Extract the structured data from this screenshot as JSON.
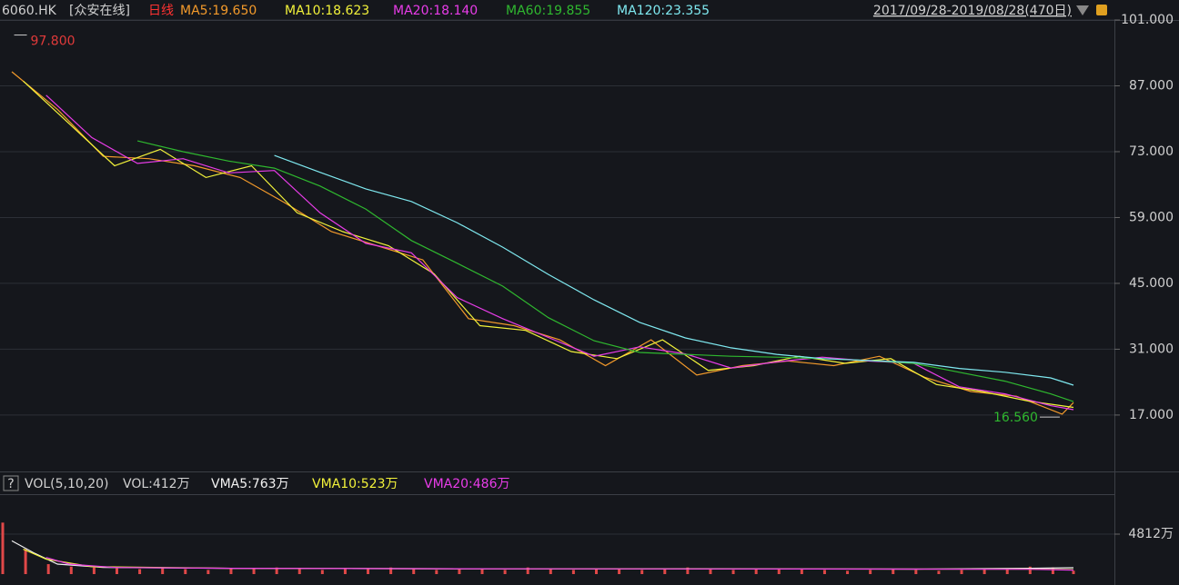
{
  "header": {
    "symbol": "6060.HK",
    "name": "[众安在线]",
    "period": "日线",
    "range": "2017/09/28-2019/08/28(470日)"
  },
  "volume_header": {
    "help": "?",
    "indicator": "VOL(5,10,20)",
    "current": "VOL:412万"
  },
  "chart_data": [
    {
      "type": "line",
      "xlim": [
        0,
        469
      ],
      "ylim": [
        5.2,
        101
      ],
      "grid": true,
      "yticks": [
        {
          "value": 101,
          "label": "101.000"
        },
        {
          "value": 87,
          "label": "87.000"
        },
        {
          "value": 73,
          "label": "73.000"
        },
        {
          "value": 59,
          "label": "59.000"
        },
        {
          "value": 45,
          "label": "45.000"
        },
        {
          "value": 31,
          "label": "31.000"
        },
        {
          "value": 17,
          "label": "17.000"
        }
      ],
      "series": [
        {
          "name": "MA5:19.650",
          "color": "#f39a2b",
          "x": [
            4,
            24,
            44,
            64,
            84,
            104,
            124,
            144,
            164,
            184,
            204,
            224,
            244,
            264,
            284,
            304,
            324,
            344,
            364,
            384,
            404,
            424,
            444,
            464,
            469
          ],
          "values": [
            90,
            82,
            72,
            71.5,
            70,
            67.5,
            62,
            56,
            53,
            50,
            37.5,
            36,
            33,
            27.5,
            33,
            25.5,
            27.5,
            28.5,
            27.5,
            29.5,
            25,
            22,
            21,
            17.2,
            19.65
          ]
        },
        {
          "name": "MA10:18.623",
          "color": "#f2f23a",
          "x": [
            9,
            29,
            49,
            69,
            89,
            109,
            129,
            149,
            169,
            189,
            209,
            229,
            249,
            269,
            289,
            309,
            329,
            349,
            369,
            389,
            409,
            429,
            449,
            469
          ],
          "values": [
            88,
            79,
            70,
            73.5,
            67.5,
            70,
            60,
            56,
            53,
            47,
            36,
            35,
            30.5,
            29,
            33,
            26.5,
            27.5,
            29.5,
            28,
            29,
            23.5,
            22,
            20,
            18.623
          ]
        },
        {
          "name": "MA20:18.140",
          "color": "#e83ce8",
          "x": [
            19,
            39,
            59,
            79,
            99,
            119,
            139,
            159,
            179,
            199,
            219,
            239,
            259,
            279,
            299,
            319,
            339,
            359,
            379,
            399,
            419,
            439,
            459,
            469
          ],
          "values": [
            85,
            76,
            70.5,
            71.5,
            68.5,
            69,
            60,
            53.5,
            51.5,
            42,
            37.5,
            33.5,
            29.5,
            31.5,
            30,
            27,
            28.3,
            29.3,
            28.5,
            28,
            23,
            21.5,
            19,
            18.14
          ]
        },
        {
          "name": "MA60:19.855",
          "color": "#2fb82f",
          "x": [
            59,
            79,
            99,
            119,
            139,
            159,
            179,
            199,
            219,
            239,
            259,
            279,
            299,
            319,
            339,
            359,
            379,
            399,
            419,
            439,
            459,
            469
          ],
          "values": [
            75.3,
            73,
            71,
            69.5,
            65.7,
            60.8,
            54.1,
            49.3,
            44.4,
            37.7,
            32.8,
            30.3,
            29.9,
            29.5,
            29.3,
            29,
            28.6,
            28,
            26.1,
            24.2,
            21.5,
            19.855
          ]
        },
        {
          "name": "MA120:23.355",
          "color": "#7fe9f0",
          "x": [
            119,
            139,
            159,
            179,
            199,
            219,
            239,
            259,
            279,
            299,
            319,
            339,
            359,
            379,
            399,
            419,
            439,
            459,
            469
          ],
          "values": [
            72.2,
            68.6,
            65.1,
            62.4,
            57.9,
            52.7,
            46.9,
            41.5,
            36.7,
            33.4,
            31.3,
            29.9,
            29,
            28.6,
            28.2,
            26.9,
            26.1,
            24.9,
            23.355
          ]
        }
      ],
      "annotations": [
        {
          "x": 5,
          "value": 97.8,
          "label": "97.800",
          "color": "#e03a3a"
        },
        {
          "x": 463,
          "value": 16.56,
          "label": "16.560",
          "color": "#2fb82f"
        }
      ]
    },
    {
      "type": "bar",
      "xlim": [
        0,
        469
      ],
      "ylim": [
        0,
        9624
      ],
      "color": "#e04848",
      "yticks": [
        {
          "value": 4812,
          "label": "4812万"
        }
      ],
      "x": [
        0,
        10,
        20,
        30,
        40,
        50,
        60,
        70,
        80,
        90,
        100,
        110,
        120,
        130,
        140,
        150,
        160,
        170,
        180,
        190,
        200,
        210,
        220,
        230,
        240,
        250,
        260,
        270,
        280,
        290,
        300,
        310,
        320,
        330,
        340,
        350,
        360,
        370,
        380,
        390,
        400,
        410,
        420,
        430,
        440,
        450,
        460,
        469
      ],
      "values": [
        6200,
        3000,
        1200,
        900,
        800,
        700,
        600,
        700,
        600,
        500,
        700,
        600,
        800,
        600,
        500,
        600,
        700,
        800,
        600,
        500,
        700,
        600,
        500,
        800,
        600,
        500,
        700,
        600,
        500,
        600,
        800,
        700,
        500,
        600,
        700,
        600,
        500,
        400,
        500,
        600,
        500,
        400,
        500,
        600,
        700,
        900,
        800,
        412
      ],
      "series": [
        {
          "name": "VMA5:763万",
          "color": "#f2f2f2",
          "x": [
            4,
            14,
            24,
            44,
            100,
            200,
            300,
            400,
            450,
            469
          ],
          "values": [
            4000,
            2500,
            1200,
            800,
            700,
            650,
            650,
            600,
            700,
            763
          ]
        },
        {
          "name": "VMA10:523万",
          "color": "#f2f23a",
          "x": [
            9,
            19,
            39,
            100,
            200,
            300,
            400,
            450,
            469
          ],
          "values": [
            3000,
            1800,
            900,
            700,
            650,
            620,
            600,
            600,
            523
          ]
        },
        {
          "name": "VMA20:486万",
          "color": "#e83ce8",
          "x": [
            19,
            29,
            49,
            100,
            200,
            300,
            400,
            450,
            469
          ],
          "values": [
            2000,
            1200,
            800,
            700,
            650,
            620,
            600,
            580,
            486
          ]
        }
      ]
    }
  ]
}
